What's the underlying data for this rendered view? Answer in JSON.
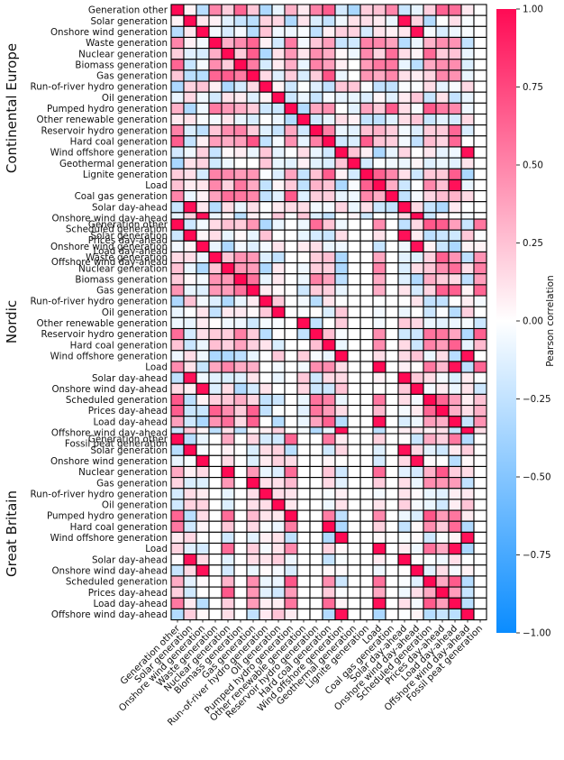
{
  "chart_data": {
    "type": "heatmap",
    "colorbar": {
      "label": "Pearson correlation",
      "vmin": -1.0,
      "vmax": 1.0,
      "ticks": [
        "1.00",
        "0.75",
        "0.50",
        "0.25",
        "0.00",
        "−0.25",
        "−0.50",
        "−0.75",
        "−1.00"
      ],
      "low_color": "#0a8cff",
      "mid_color": "#ffffff",
      "high_color": "#ff0a54"
    },
    "x_labels": [
      "Generation other",
      "Solar generation",
      "Onshore wind generation",
      "Waste generation",
      "Nuclear generation",
      "Biomass generation",
      "Gas generation",
      "Run-of-river hydro generation",
      "Oil generation",
      "Pumped hydro generation",
      "Other renewable generation",
      "Reservoir hydro generation",
      "Hard coal generation",
      "Wind offshore generation",
      "Geothermal generation",
      "Lignite generation",
      "Load",
      "Coal gas generation",
      "Solar day-ahead",
      "Onshore wind day-ahead",
      "Scheduled generation",
      "Prices day-ahead",
      "Load day-ahead",
      "Offshore wind day-ahead",
      "Fossil peat generation"
    ],
    "panels": [
      {
        "title": "Continental Europe",
        "rows": [
          "Generation other",
          "Solar generation",
          "Onshore wind generation",
          "Waste generation",
          "Nuclear generation",
          "Biomass generation",
          "Gas generation",
          "Run-of-river hydro generation",
          "Oil generation",
          "Pumped hydro generation",
          "Other renewable generation",
          "Reservoir hydro generation",
          "Hard coal generation",
          "Wind offshore generation",
          "Geothermal generation",
          "Lignite generation",
          "Load",
          "Coal gas generation",
          "Solar day-ahead",
          "Onshore wind day-ahead",
          "Scheduled generation",
          "Prices day-ahead",
          "Load day-ahead",
          "Offshore wind day-ahead"
        ]
      },
      {
        "title": "Nordic",
        "rows": [
          "Generation other",
          "Solar generation",
          "Onshore wind generation",
          "Waste generation",
          "Nuclear generation",
          "Biomass generation",
          "Gas generation",
          "Run-of-river hydro generation",
          "Oil generation",
          "Other renewable generation",
          "Reservoir hydro generation",
          "Hard coal generation",
          "Wind offshore generation",
          "Load",
          "Solar day-ahead",
          "Onshore wind day-ahead",
          "Scheduled generation",
          "Prices day-ahead",
          "Load day-ahead",
          "Offshore wind day-ahead",
          "Fossil peat generation"
        ]
      },
      {
        "title": "Great Britain",
        "rows": [
          "Generation other",
          "Solar generation",
          "Onshore wind generation",
          "Nuclear generation",
          "Gas generation",
          "Run-of-river hydro generation",
          "Oil generation",
          "Pumped hydro generation",
          "Hard coal generation",
          "Wind offshore generation",
          "Load",
          "Solar day-ahead",
          "Onshore wind day-ahead",
          "Scheduled generation",
          "Prices day-ahead",
          "Load day-ahead",
          "Offshore wind day-ahead"
        ]
      }
    ],
    "notes": "Cell values are Pearson correlations in [-1, 1]; diagonal = 1.0. Off-diagonal values estimated from colour; variables absent in a region render as blank (0)."
  }
}
